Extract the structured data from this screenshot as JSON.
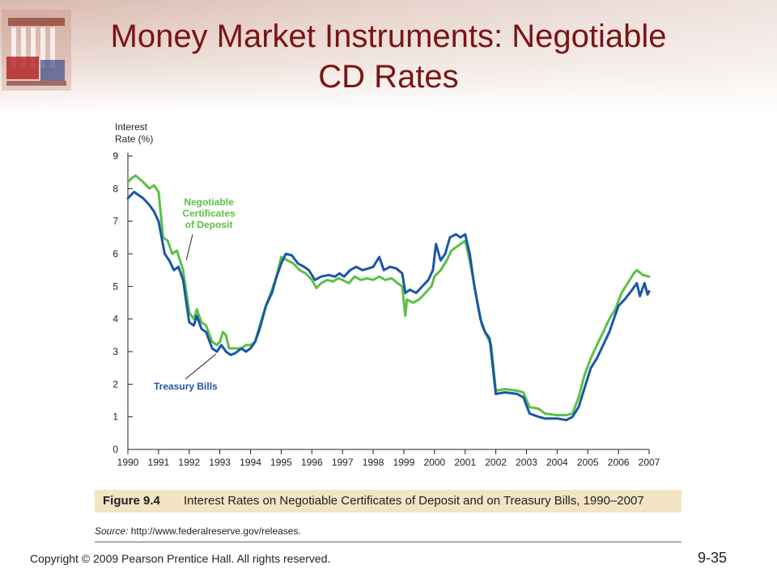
{
  "slide": {
    "title_line1": "Money Market Instruments: Negotiable",
    "title_line2": "CD Rates",
    "figure_label": "Figure 9.4",
    "figure_caption": "Interest Rates on Negotiable Certificates of Deposit and on Treasury Bills, 1990–2007",
    "source_label": "Source:",
    "source_url": "http://www.federalreserve.gov/releases.",
    "copyright": "Copyright © 2009 Pearson Prentice Hall. All rights reserved.",
    "slide_number": "9-35"
  },
  "colors": {
    "title": "#7a1414",
    "cd_series": "#5cc044",
    "tbill_series": "#1a56a8",
    "caption_bg": "#f3e4c4"
  },
  "chart_data": {
    "type": "line",
    "title": "",
    "xlabel": "",
    "ylabel": "Interest Rate (%)",
    "ylabel_lines": [
      "Interest",
      "Rate (%)"
    ],
    "xlim": [
      1990,
      2007
    ],
    "ylim": [
      0,
      9
    ],
    "x_ticks": [
      1990,
      1991,
      1992,
      1993,
      1994,
      1995,
      1996,
      1997,
      1998,
      1999,
      2000,
      2001,
      2002,
      2003,
      2004,
      2005,
      2006,
      2007
    ],
    "y_ticks": [
      0,
      1,
      2,
      3,
      4,
      5,
      6,
      7,
      8,
      9
    ],
    "grid": false,
    "legend": "annotations",
    "series": [
      {
        "name": "Negotiable Certificates of Deposit",
        "label_lines": [
          "Negotiable",
          "Certificates",
          "of Deposit"
        ],
        "color": "#5cc044",
        "points": [
          [
            1990.0,
            8.2
          ],
          [
            1990.1,
            8.3
          ],
          [
            1990.25,
            8.4
          ],
          [
            1990.5,
            8.2
          ],
          [
            1990.7,
            8.0
          ],
          [
            1990.85,
            8.1
          ],
          [
            1991.0,
            7.9
          ],
          [
            1991.15,
            6.5
          ],
          [
            1991.3,
            6.4
          ],
          [
            1991.45,
            6.0
          ],
          [
            1991.6,
            6.1
          ],
          [
            1991.8,
            5.5
          ],
          [
            1992.0,
            4.2
          ],
          [
            1992.15,
            4.0
          ],
          [
            1992.25,
            4.3
          ],
          [
            1992.4,
            3.9
          ],
          [
            1992.55,
            3.8
          ],
          [
            1992.75,
            3.3
          ],
          [
            1992.9,
            3.2
          ],
          [
            1993.0,
            3.3
          ],
          [
            1993.1,
            3.6
          ],
          [
            1993.2,
            3.5
          ],
          [
            1993.3,
            3.1
          ],
          [
            1993.5,
            3.1
          ],
          [
            1993.7,
            3.1
          ],
          [
            1993.85,
            3.2
          ],
          [
            1994.0,
            3.2
          ],
          [
            1994.15,
            3.3
          ],
          [
            1994.3,
            3.8
          ],
          [
            1994.5,
            4.4
          ],
          [
            1994.7,
            4.9
          ],
          [
            1994.85,
            5.3
          ],
          [
            1995.0,
            5.9
          ],
          [
            1995.2,
            5.8
          ],
          [
            1995.4,
            5.7
          ],
          [
            1995.6,
            5.5
          ],
          [
            1995.8,
            5.4
          ],
          [
            1996.0,
            5.2
          ],
          [
            1996.15,
            4.95
          ],
          [
            1996.3,
            5.1
          ],
          [
            1996.5,
            5.2
          ],
          [
            1996.7,
            5.15
          ],
          [
            1996.85,
            5.25
          ],
          [
            1997.0,
            5.2
          ],
          [
            1997.2,
            5.1
          ],
          [
            1997.4,
            5.3
          ],
          [
            1997.6,
            5.2
          ],
          [
            1997.8,
            5.25
          ],
          [
            1998.0,
            5.2
          ],
          [
            1998.2,
            5.3
          ],
          [
            1998.4,
            5.2
          ],
          [
            1998.6,
            5.25
          ],
          [
            1998.8,
            5.1
          ],
          [
            1998.95,
            5.0
          ],
          [
            1999.05,
            4.1
          ],
          [
            1999.1,
            4.6
          ],
          [
            1999.3,
            4.5
          ],
          [
            1999.5,
            4.6
          ],
          [
            1999.7,
            4.8
          ],
          [
            1999.9,
            5.0
          ],
          [
            2000.0,
            5.3
          ],
          [
            2000.2,
            5.5
          ],
          [
            2000.4,
            5.8
          ],
          [
            2000.55,
            6.1
          ],
          [
            2000.7,
            6.2
          ],
          [
            2000.85,
            6.3
          ],
          [
            2001.0,
            6.4
          ],
          [
            2001.1,
            6.0
          ],
          [
            2001.25,
            5.3
          ],
          [
            2001.4,
            4.5
          ],
          [
            2001.55,
            3.8
          ],
          [
            2001.7,
            3.5
          ],
          [
            2001.85,
            3.2
          ],
          [
            2002.0,
            1.8
          ],
          [
            2002.3,
            1.85
          ],
          [
            2002.7,
            1.8
          ],
          [
            2002.9,
            1.75
          ],
          [
            2003.1,
            1.3
          ],
          [
            2003.4,
            1.25
          ],
          [
            2003.6,
            1.1
          ],
          [
            2004.0,
            1.05
          ],
          [
            2004.3,
            1.05
          ],
          [
            2004.5,
            1.1
          ],
          [
            2004.7,
            1.6
          ],
          [
            2004.9,
            2.3
          ],
          [
            2005.1,
            2.8
          ],
          [
            2005.3,
            3.2
          ],
          [
            2005.5,
            3.6
          ],
          [
            2005.7,
            4.0
          ],
          [
            2005.9,
            4.3
          ],
          [
            2006.1,
            4.8
          ],
          [
            2006.3,
            5.1
          ],
          [
            2006.5,
            5.4
          ],
          [
            2006.6,
            5.5
          ],
          [
            2006.8,
            5.35
          ],
          [
            2007.0,
            5.3
          ]
        ]
      },
      {
        "name": "Treasury Bills",
        "label_lines": [
          "Treasury Bills"
        ],
        "color": "#1a56a8",
        "points": [
          [
            1990.0,
            7.7
          ],
          [
            1990.1,
            7.8
          ],
          [
            1990.2,
            7.9
          ],
          [
            1990.35,
            7.8
          ],
          [
            1990.5,
            7.7
          ],
          [
            1990.7,
            7.5
          ],
          [
            1990.85,
            7.3
          ],
          [
            1991.0,
            7.0
          ],
          [
            1991.2,
            6.0
          ],
          [
            1991.35,
            5.8
          ],
          [
            1991.5,
            5.5
          ],
          [
            1991.65,
            5.6
          ],
          [
            1991.8,
            5.2
          ],
          [
            1992.0,
            3.9
          ],
          [
            1992.15,
            3.8
          ],
          [
            1992.25,
            4.1
          ],
          [
            1992.4,
            3.7
          ],
          [
            1992.55,
            3.6
          ],
          [
            1992.75,
            3.1
          ],
          [
            1992.9,
            3.0
          ],
          [
            1993.05,
            3.2
          ],
          [
            1993.2,
            3.0
          ],
          [
            1993.35,
            2.9
          ],
          [
            1993.5,
            2.95
          ],
          [
            1993.7,
            3.1
          ],
          [
            1993.85,
            3.0
          ],
          [
            1994.0,
            3.1
          ],
          [
            1994.15,
            3.3
          ],
          [
            1994.3,
            3.7
          ],
          [
            1994.5,
            4.4
          ],
          [
            1994.7,
            4.8
          ],
          [
            1994.85,
            5.3
          ],
          [
            1995.0,
            5.7
          ],
          [
            1995.15,
            6.0
          ],
          [
            1995.35,
            5.95
          ],
          [
            1995.55,
            5.7
          ],
          [
            1995.75,
            5.6
          ],
          [
            1995.9,
            5.5
          ],
          [
            1996.1,
            5.2
          ],
          [
            1996.3,
            5.3
          ],
          [
            1996.55,
            5.35
          ],
          [
            1996.75,
            5.3
          ],
          [
            1996.9,
            5.4
          ],
          [
            1997.05,
            5.3
          ],
          [
            1997.25,
            5.5
          ],
          [
            1997.45,
            5.6
          ],
          [
            1997.65,
            5.5
          ],
          [
            1997.85,
            5.55
          ],
          [
            1998.0,
            5.6
          ],
          [
            1998.2,
            5.9
          ],
          [
            1998.35,
            5.5
          ],
          [
            1998.55,
            5.6
          ],
          [
            1998.75,
            5.55
          ],
          [
            1998.95,
            5.4
          ],
          [
            1999.05,
            4.8
          ],
          [
            1999.2,
            4.9
          ],
          [
            1999.4,
            4.8
          ],
          [
            1999.6,
            5.0
          ],
          [
            1999.8,
            5.2
          ],
          [
            1999.95,
            5.5
          ],
          [
            2000.05,
            6.3
          ],
          [
            2000.2,
            5.8
          ],
          [
            2000.35,
            6.0
          ],
          [
            2000.5,
            6.5
          ],
          [
            2000.7,
            6.6
          ],
          [
            2000.85,
            6.5
          ],
          [
            2001.0,
            6.6
          ],
          [
            2001.15,
            6.0
          ],
          [
            2001.3,
            5.0
          ],
          [
            2001.5,
            4.0
          ],
          [
            2001.65,
            3.6
          ],
          [
            2001.8,
            3.4
          ],
          [
            2002.0,
            1.7
          ],
          [
            2002.3,
            1.75
          ],
          [
            2002.7,
            1.7
          ],
          [
            2002.9,
            1.6
          ],
          [
            2003.1,
            1.1
          ],
          [
            2003.4,
            1.0
          ],
          [
            2003.6,
            0.95
          ],
          [
            2004.0,
            0.95
          ],
          [
            2004.3,
            0.9
          ],
          [
            2004.5,
            1.0
          ],
          [
            2004.7,
            1.3
          ],
          [
            2004.9,
            1.9
          ],
          [
            2005.1,
            2.5
          ],
          [
            2005.3,
            2.8
          ],
          [
            2005.5,
            3.2
          ],
          [
            2005.7,
            3.6
          ],
          [
            2005.85,
            4.0
          ],
          [
            2006.0,
            4.4
          ],
          [
            2006.2,
            4.6
          ],
          [
            2006.45,
            4.9
          ],
          [
            2006.6,
            5.1
          ],
          [
            2006.7,
            4.7
          ],
          [
            2006.85,
            5.1
          ],
          [
            2006.95,
            4.75
          ],
          [
            2007.0,
            4.85
          ]
        ]
      }
    ]
  }
}
